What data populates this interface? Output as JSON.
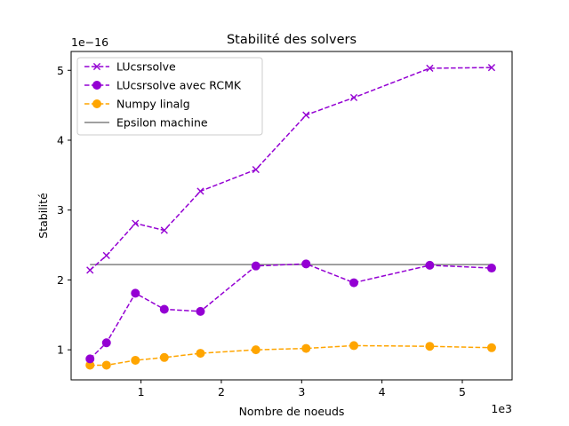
{
  "chart_data": {
    "type": "line",
    "title": "Stabilité des solvers",
    "xlabel": "Nombre de noeuds",
    "ylabel": "Stabilité",
    "x_offset_label": "1e3",
    "y_offset_label": "1e−16",
    "xlim": [
      130,
      5620
    ],
    "ylim": [
      0.57,
      5.27
    ],
    "x_ticks": [
      {
        "value": 1000,
        "label": "1"
      },
      {
        "value": 2000,
        "label": "2"
      },
      {
        "value": 3000,
        "label": "3"
      },
      {
        "value": 4000,
        "label": "4"
      },
      {
        "value": 5000,
        "label": "5"
      }
    ],
    "y_ticks": [
      {
        "value": 1,
        "label": "1"
      },
      {
        "value": 2,
        "label": "2"
      },
      {
        "value": 3,
        "label": "3"
      },
      {
        "value": 4,
        "label": "4"
      },
      {
        "value": 5,
        "label": "5"
      }
    ],
    "grid": false,
    "legend_position": "top-left",
    "series": [
      {
        "name": "LUcsrsolve",
        "color": "#9400d3",
        "linestyle": "dashed",
        "marker": "x",
        "x": [
          365,
          570,
          930,
          1290,
          1740,
          2430,
          3055,
          3650,
          4595,
          5365
        ],
        "y": [
          2.14,
          2.35,
          2.81,
          2.71,
          3.27,
          3.58,
          4.36,
          4.61,
          5.03,
          5.04
        ]
      },
      {
        "name": "LUcsrsolve avec RCMK",
        "color": "#9400d3",
        "linestyle": "dashed",
        "marker": "o",
        "x": [
          365,
          570,
          930,
          1290,
          1740,
          2430,
          3055,
          3650,
          4595,
          5365
        ],
        "y": [
          0.87,
          1.1,
          1.81,
          1.58,
          1.55,
          2.2,
          2.23,
          1.96,
          2.21,
          2.17
        ]
      },
      {
        "name": "Numpy linalg",
        "color": "#ffa500",
        "linestyle": "dashed",
        "marker": "o",
        "x": [
          365,
          570,
          930,
          1290,
          1740,
          2430,
          3055,
          3650,
          4595,
          5365
        ],
        "y": [
          0.78,
          0.78,
          0.85,
          0.89,
          0.95,
          1.0,
          1.02,
          1.06,
          1.05,
          1.03
        ]
      },
      {
        "name": "Epsilon machine",
        "color": "#808080",
        "linestyle": "solid",
        "marker": "none",
        "x": [
          365,
          5365
        ],
        "y": [
          2.22,
          2.22
        ]
      }
    ]
  }
}
